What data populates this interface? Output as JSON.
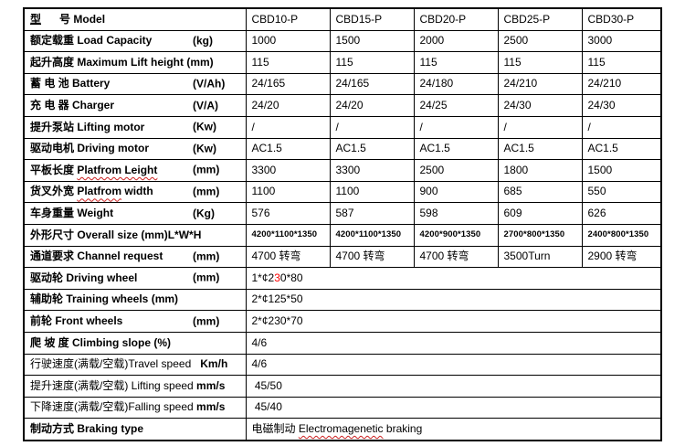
{
  "colors": {
    "text": "#000000",
    "accent_red": "#ff0000",
    "border": "#000000",
    "background": "#ffffff",
    "spellcheck_wavy": "#cc2222"
  },
  "table": {
    "header": {
      "label_segments": [
        {
          "t": "型",
          "u": true
        },
        {
          "t": "      "
        },
        {
          "t": "号 Model"
        }
      ],
      "models": [
        "CBD10-P",
        "CBD15-P",
        "CBD20-P",
        "CBD25-P",
        "CBD30-P"
      ]
    },
    "rows": [
      {
        "name": "load-capacity",
        "label": [
          {
            "t": "额定载重 Load Capacity"
          }
        ],
        "unit": "(kg)",
        "values": [
          "1000",
          "1500",
          "2000",
          "2500",
          "3000"
        ]
      },
      {
        "name": "max-lift-height",
        "label": [
          {
            "t": "起升高度 Maximum Lift height (mm)"
          }
        ],
        "values": [
          "115",
          "115",
          "115",
          "115",
          "115"
        ]
      },
      {
        "name": "battery",
        "label": [
          {
            "t": "蓄 电 池 Battery"
          }
        ],
        "unit": "(V/Ah)",
        "values": [
          "24/165",
          "24/165",
          "24/180",
          "24/210",
          "24/210"
        ]
      },
      {
        "name": "charger",
        "label": [
          {
            "t": "充 电 器 Charger"
          }
        ],
        "unit": "(V/A)",
        "values": [
          "24/20",
          "24/20",
          "24/25",
          "24/30",
          "24/30"
        ]
      },
      {
        "name": "lifting-motor",
        "label": [
          {
            "t": "提升泵站 Lifting motor"
          }
        ],
        "unit": "(Kw)",
        "vclass": "red",
        "values": [
          "/",
          "/",
          "/",
          "/",
          "/"
        ]
      },
      {
        "name": "driving-motor",
        "label": [
          {
            "t": "驱动电机 Driving motor"
          }
        ],
        "unit": "(Kw)",
        "values": [
          "AC1.5",
          "AC1.5",
          "AC1.5",
          "AC1.5",
          "AC1.5"
        ]
      },
      {
        "name": "platform-length",
        "label": [
          {
            "t": "平板长度 "
          },
          {
            "t": "Platfrom Leight",
            "w": true
          }
        ],
        "unit": "(mm)",
        "values": [
          "3300",
          "3300",
          "2500",
          "1800",
          "1500"
        ]
      },
      {
        "name": "platform-width",
        "label": [
          {
            "t": "货叉外宽 "
          },
          {
            "t": "Platfrom",
            "w": true
          },
          {
            "t": " width"
          }
        ],
        "unit": "(mm)",
        "values": [
          "1100",
          "1100",
          "900",
          "685",
          "550"
        ]
      },
      {
        "name": "weight",
        "label": [
          {
            "t": "车身重量 Weight"
          }
        ],
        "unit": "(Kg)",
        "values": [
          "576",
          "587",
          "598",
          "609",
          "626"
        ]
      },
      {
        "name": "overall-size",
        "label": [
          {
            "t": "外形尺寸 Overall size (mm)L*W*H"
          }
        ],
        "vclass": "small-size",
        "values": [
          "4200*1100*1350",
          "4200*1100*1350",
          "4200*900*1350",
          "2700*800*1350",
          "2400*800*1350"
        ]
      },
      {
        "name": "channel-request",
        "label": [
          {
            "t": "通道要求 Channel request"
          }
        ],
        "unit": "(mm)",
        "vclass": "red",
        "values": [
          "4700 转弯",
          "4700 转弯",
          "4700 转弯",
          "3500Turn",
          "2900 转弯"
        ]
      },
      {
        "name": "driving-wheel",
        "label": [
          {
            "t": "驱动轮 Driving wheel"
          }
        ],
        "unit": "(mm)",
        "span": true,
        "values": [
          [
            {
              "t": "1*¢2"
            },
            {
              "t": "3",
              "c": "red"
            },
            {
              "t": "0*80"
            }
          ]
        ]
      },
      {
        "name": "training-wheels",
        "label": [
          {
            "t": "辅助轮 Training wheels (mm)"
          }
        ],
        "span": true,
        "values": [
          "2*¢125*50"
        ]
      },
      {
        "name": "front-wheels",
        "label": [
          {
            "t": "前轮 Front wheels"
          }
        ],
        "unit": "(mm)",
        "span": true,
        "vclass": "red",
        "values": [
          "2*¢230*70"
        ]
      },
      {
        "name": "climbing-slope",
        "label": [
          {
            "t": "爬 坡 度 Climbing slope (%)"
          }
        ],
        "span": true,
        "values": [
          "4/6"
        ]
      },
      {
        "name": "travel-speed",
        "label": [
          {
            "t": "行驶速度(满载/空载)Travel speed",
            "n": true
          },
          {
            "t": "   Km/h"
          }
        ],
        "span": true,
        "values": [
          "4/6"
        ]
      },
      {
        "name": "lifting-speed",
        "label": [
          {
            "t": "提升速度(满载/空载) Lifting speed ",
            "n": true
          },
          {
            "t": "mm/s"
          }
        ],
        "span": true,
        "values": [
          " 45/50"
        ]
      },
      {
        "name": "falling-speed",
        "label": [
          {
            "t": "下降速度(满载/空载)Falling speed ",
            "n": true
          },
          {
            "t": "mm/s"
          }
        ],
        "span": true,
        "values": [
          " 45/40"
        ]
      },
      {
        "name": "braking-type",
        "label": [
          {
            "t": "制动方式 Braking type"
          }
        ],
        "span": true,
        "vclass": "bold",
        "values": [
          [
            {
              "t": "电磁制动 "
            },
            {
              "t": "Electromagenetic",
              "w": true
            },
            {
              "t": " braking"
            }
          ]
        ]
      }
    ]
  }
}
